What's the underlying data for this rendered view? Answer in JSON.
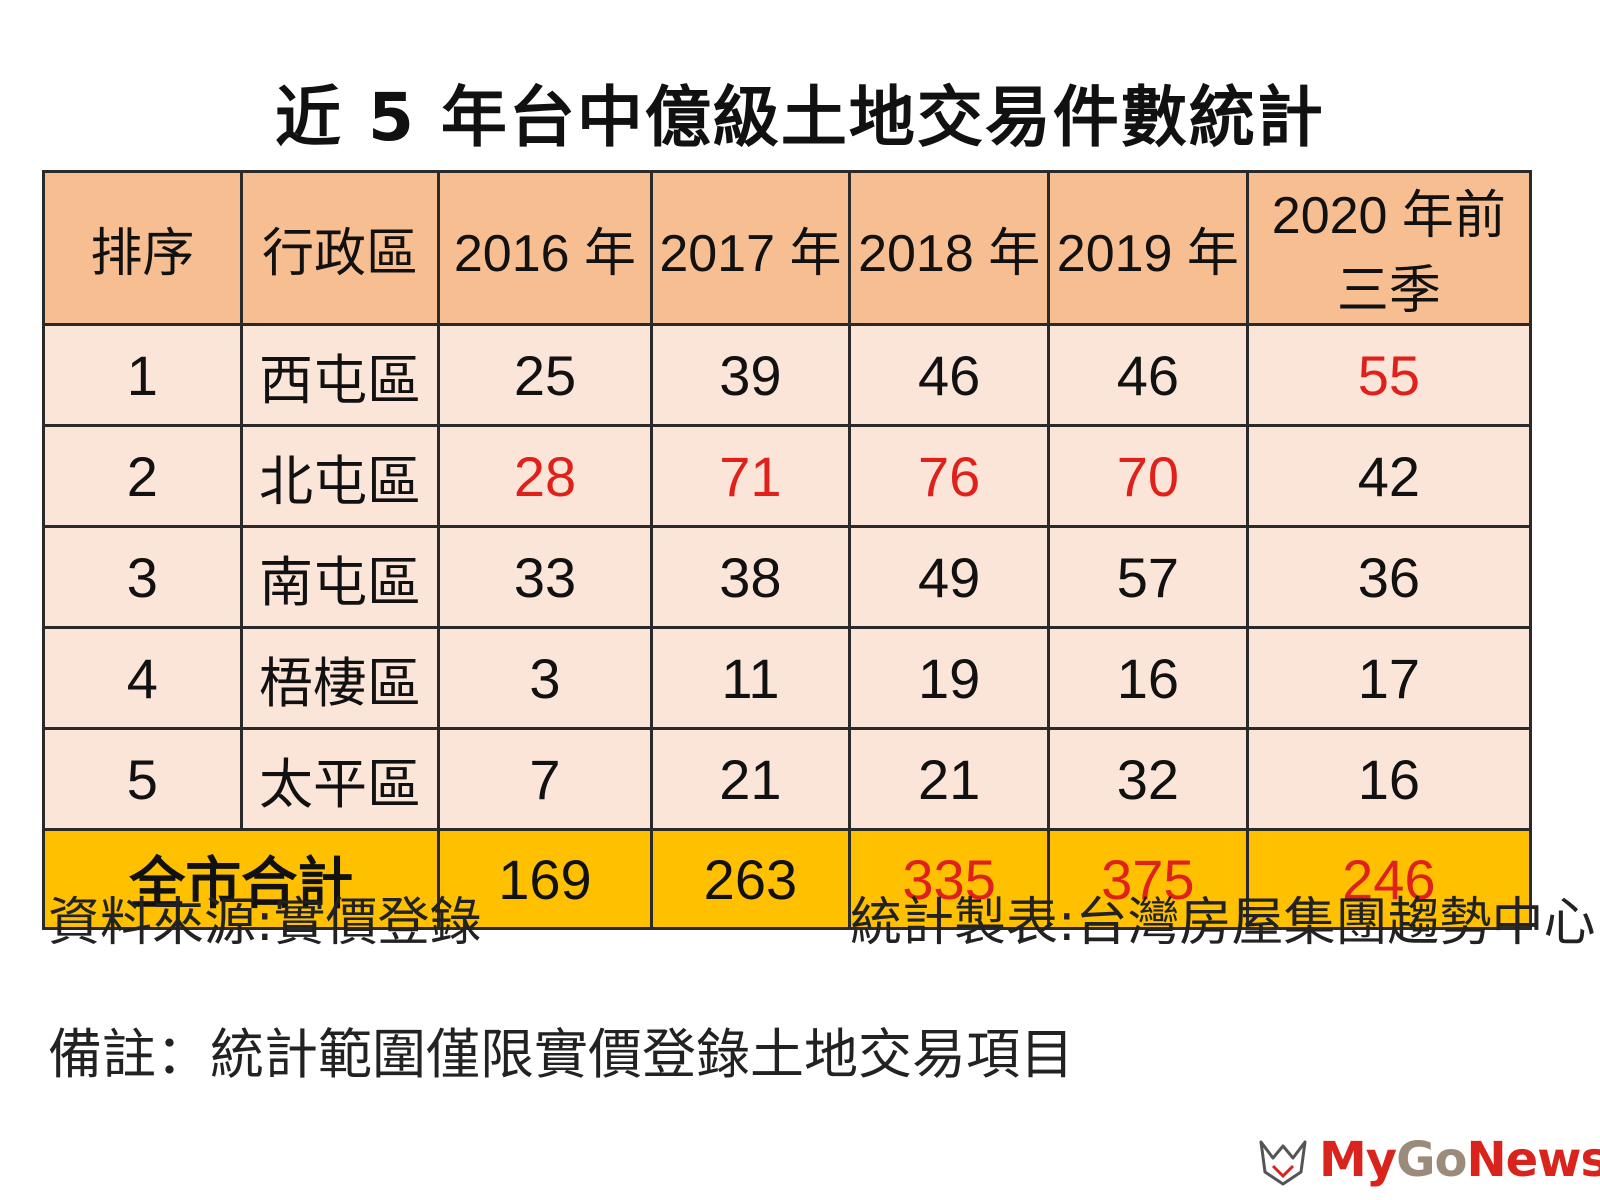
{
  "title": "近 5 年台中億級土地交易件數統計",
  "table": {
    "headers": [
      "排序",
      "行政區",
      "2016 年",
      "2017 年",
      "2018 年",
      "2019 年",
      "2020 年前三季"
    ],
    "rows": [
      {
        "rank": "1",
        "district": "西屯區",
        "values": [
          "25",
          "39",
          "46",
          "46",
          "55"
        ],
        "red": [
          false,
          false,
          false,
          false,
          true
        ]
      },
      {
        "rank": "2",
        "district": "北屯區",
        "values": [
          "28",
          "71",
          "76",
          "70",
          "42"
        ],
        "red": [
          true,
          true,
          true,
          true,
          false
        ]
      },
      {
        "rank": "3",
        "district": "南屯區",
        "values": [
          "33",
          "38",
          "49",
          "57",
          "36"
        ],
        "red": [
          false,
          false,
          false,
          false,
          false
        ]
      },
      {
        "rank": "4",
        "district": "梧棲區",
        "values": [
          "3",
          "11",
          "19",
          "16",
          "17"
        ],
        "red": [
          false,
          false,
          false,
          false,
          false
        ]
      },
      {
        "rank": "5",
        "district": "太平區",
        "values": [
          "7",
          "21",
          "21",
          "32",
          "16"
        ],
        "red": [
          false,
          false,
          false,
          false,
          false
        ]
      }
    ],
    "total": {
      "label": "全市合計",
      "values": [
        "169",
        "263",
        "335",
        "375",
        "246"
      ],
      "red": [
        false,
        false,
        true,
        true,
        true
      ]
    }
  },
  "footer": {
    "source": "資料來源:實價登錄",
    "maker": "統計製表:台灣房屋集團趨勢中心",
    "note": "備註：統計範圍僅限實價登錄土地交易項目"
  },
  "logo": {
    "icon": "mygonews-logo-icon",
    "text_my": "My",
    "text_go": "Go",
    "text_news": "News"
  },
  "colors": {
    "header_bg": "#f7be91",
    "body_bg": "#fbe5d8",
    "total_bg": "#ffc000",
    "highlight_red": "#e0201a"
  }
}
